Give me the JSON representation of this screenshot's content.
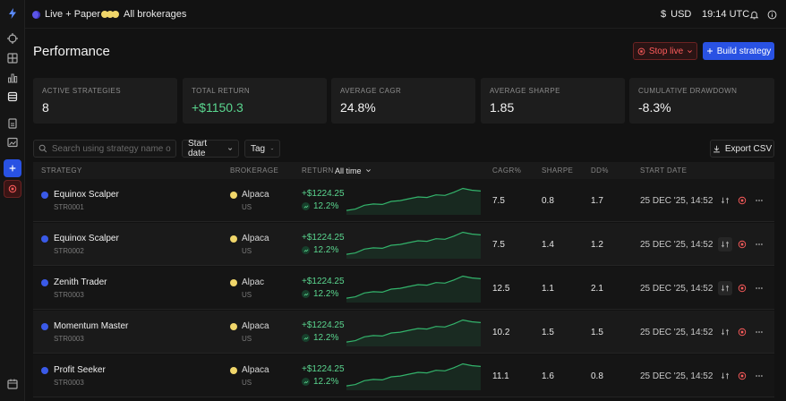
{
  "topbar": {
    "mode_label": "Live + Paper",
    "brokerage_label": "All brokerages",
    "currency": "USD",
    "time": "19:14 UTC"
  },
  "page": {
    "title": "Performance",
    "stop_label": "Stop live",
    "build_label": "Build strategy"
  },
  "stats": [
    {
      "label": "ACTIVE STRATEGIES",
      "value": "8"
    },
    {
      "label": "TOTAL RETURN",
      "value": "+$1150.3"
    },
    {
      "label": "AVERAGE CAGR",
      "value": "24.8%"
    },
    {
      "label": "AVERAGE SHARPE",
      "value": "1.85"
    },
    {
      "label": "CUMULATIVE DRAWDOWN",
      "value": "-8.3%"
    }
  ],
  "filters": {
    "search_placeholder": "Search using strategy name or ID",
    "start_date": "Start date",
    "tag": "Tag",
    "export": "Export CSV"
  },
  "table": {
    "headers": {
      "strategy": "STRATEGY",
      "brokerage": "BROKERAGE",
      "return": "RETURN",
      "range": "All time",
      "cagr": "CAGR%",
      "sharpe": "SHARPE",
      "dd": "DD%",
      "start_date": "START DATE"
    },
    "rows": [
      {
        "name": "Equinox Scalper",
        "id": "STR0001",
        "broker": "Alpaca",
        "region": "US",
        "ret": "+$1224.25",
        "pct": "12.2%",
        "cagr": "7.5",
        "sharpe": "0.8",
        "dd": "1.7",
        "date": "25 DEC '25, 14:52",
        "spark": [
          0.1,
          0.15,
          0.3,
          0.35,
          0.33,
          0.45,
          0.48,
          0.55,
          0.62,
          0.6,
          0.7,
          0.68,
          0.8,
          0.95,
          0.88,
          0.85
        ]
      },
      {
        "name": "Equinox Scalper",
        "id": "STR0002",
        "broker": "Alpaca",
        "region": "US",
        "ret": "+$1224.25",
        "pct": "12.2%",
        "cagr": "7.5",
        "sharpe": "1.4",
        "dd": "1.2",
        "date": "25 DEC '25, 14:52",
        "spark": [
          0.1,
          0.15,
          0.3,
          0.35,
          0.33,
          0.45,
          0.48,
          0.55,
          0.62,
          0.6,
          0.7,
          0.68,
          0.8,
          0.95,
          0.88,
          0.85
        ]
      },
      {
        "name": "Zenith Trader",
        "id": "STR0003",
        "broker": "Alpac",
        "region": "US",
        "ret": "+$1224.25",
        "pct": "12.2%",
        "cagr": "12.5",
        "sharpe": "1.1",
        "dd": "2.1",
        "date": "25 DEC '25, 14:52",
        "spark": [
          0.1,
          0.15,
          0.3,
          0.35,
          0.33,
          0.45,
          0.48,
          0.55,
          0.62,
          0.6,
          0.7,
          0.68,
          0.8,
          0.95,
          0.88,
          0.85
        ]
      },
      {
        "name": "Momentum Master",
        "id": "STR0003",
        "broker": "Alpaca",
        "region": "US",
        "ret": "+$1224.25",
        "pct": "12.2%",
        "cagr": "10.2",
        "sharpe": "1.5",
        "dd": "1.5",
        "date": "25 DEC '25, 14:52",
        "spark": [
          0.1,
          0.15,
          0.3,
          0.35,
          0.33,
          0.45,
          0.48,
          0.55,
          0.62,
          0.6,
          0.7,
          0.68,
          0.8,
          0.95,
          0.88,
          0.85
        ]
      },
      {
        "name": "Profit Seeker",
        "id": "STR0003",
        "broker": "Alpaca",
        "region": "US",
        "ret": "+$1224.25",
        "pct": "12.2%",
        "cagr": "11.1",
        "sharpe": "1.6",
        "dd": "0.8",
        "date": "25 DEC '25, 14:52",
        "spark": [
          0.1,
          0.15,
          0.3,
          0.35,
          0.33,
          0.45,
          0.48,
          0.55,
          0.62,
          0.6,
          0.7,
          0.68,
          0.8,
          0.95,
          0.88,
          0.85
        ]
      }
    ]
  },
  "colors": {
    "accent": "#2952e3",
    "positive": "#5ad68f",
    "danger": "#ff5c5c",
    "strategy_dot": "#3a5ae8",
    "broker_coin": "#f0d66a"
  },
  "icons": {
    "sidebar": [
      "bolt-icon",
      "target-icon",
      "grid-icon",
      "bar-chart-icon",
      "database-icon",
      "document-icon",
      "image-icon",
      "plus-icon",
      "stop-icon",
      "calendar-icon"
    ],
    "topbar": [
      "live-dot-icon",
      "brokerage-coins-icon",
      "dollar-icon",
      "bell-icon",
      "info-icon"
    ],
    "row_actions": [
      "transfer-icon",
      "stop-icon",
      "more-icon"
    ]
  }
}
